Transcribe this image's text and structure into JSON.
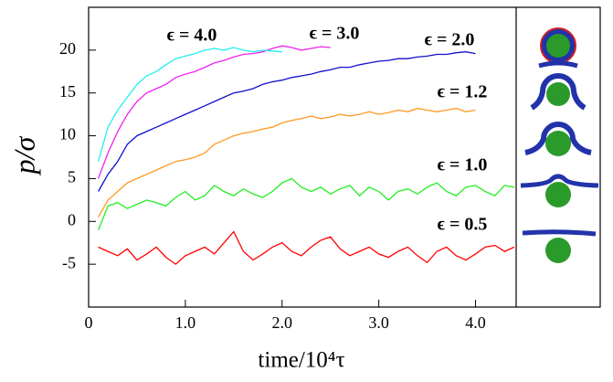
{
  "chart_data": {
    "type": "line",
    "x_label": "time/10⁴τ",
    "y_label": "p/σ",
    "xlim": [
      0,
      4.42
    ],
    "ylim": [
      -10,
      25
    ],
    "xticks": [
      0,
      {
        "value": 1,
        "label": "1.0"
      },
      {
        "value": 2,
        "label": "2.0"
      },
      {
        "value": 3,
        "label": "3.0"
      },
      {
        "value": 4,
        "label": "4.0"
      }
    ],
    "yticks": [
      -5,
      0,
      5,
      10,
      15,
      20
    ],
    "annotations": [
      "ϵ = 4.0",
      "ϵ = 3.0",
      "ϵ = 2.0",
      "ϵ = 1.2",
      "ϵ = 1.0",
      "ϵ = 0.5"
    ],
    "series": [
      {
        "color": "#ff0000",
        "x": [
          0.1,
          0.2,
          0.3,
          0.4,
          0.5,
          0.6,
          0.7,
          0.8,
          0.9,
          1.0,
          1.1,
          1.2,
          1.3,
          1.4,
          1.5,
          1.6,
          1.7,
          1.8,
          1.9,
          2.0,
          2.1,
          2.2,
          2.3,
          2.4,
          2.5,
          2.6,
          2.7,
          2.8,
          2.9,
          3.0,
          3.1,
          3.2,
          3.3,
          3.4,
          3.5,
          3.6,
          3.7,
          3.8,
          3.9,
          4.0,
          4.1,
          4.2,
          4.3,
          4.4
        ],
        "values": [
          -3,
          -3.5,
          -4,
          -3.2,
          -4.5,
          -3.8,
          -3,
          -4.2,
          -5,
          -4,
          -3.5,
          -3,
          -3.8,
          -2.5,
          -1.2,
          -3.5,
          -4.5,
          -3.8,
          -3,
          -2.5,
          -3.5,
          -4,
          -3,
          -2.2,
          -1.8,
          -3.2,
          -4,
          -3.5,
          -3,
          -3.8,
          -4.2,
          -3.5,
          -3,
          -4,
          -4.8,
          -3.5,
          -3,
          -4,
          -4.5,
          -3.8,
          -3,
          -2.8,
          -3.5,
          -3
        ]
      },
      {
        "color": "#22ee22",
        "x": [
          0.1,
          0.2,
          0.3,
          0.4,
          0.5,
          0.6,
          0.7,
          0.8,
          0.9,
          1.0,
          1.1,
          1.2,
          1.3,
          1.4,
          1.5,
          1.6,
          1.7,
          1.8,
          1.9,
          2.0,
          2.1,
          2.2,
          2.3,
          2.4,
          2.5,
          2.6,
          2.7,
          2.8,
          2.9,
          3.0,
          3.1,
          3.2,
          3.3,
          3.4,
          3.5,
          3.6,
          3.7,
          3.8,
          3.9,
          4.0,
          4.1,
          4.2,
          4.3,
          4.4
        ],
        "values": [
          -1,
          1.8,
          2.2,
          1.5,
          2,
          2.5,
          2.2,
          1.8,
          2.8,
          3.5,
          2.5,
          3,
          4.2,
          3.5,
          3,
          3.8,
          3.2,
          2.8,
          3.5,
          4.5,
          5,
          4,
          3.5,
          4,
          3.2,
          3.8,
          4.2,
          3,
          4,
          3.5,
          2.5,
          3.5,
          3.8,
          3.2,
          4,
          4.5,
          3.5,
          3,
          4,
          4.2,
          3.5,
          3,
          4.2,
          4
        ]
      },
      {
        "color": "#ff9922",
        "x": [
          0.1,
          0.2,
          0.3,
          0.4,
          0.5,
          0.6,
          0.7,
          0.8,
          0.9,
          1.0,
          1.1,
          1.2,
          1.3,
          1.4,
          1.5,
          1.6,
          1.7,
          1.8,
          1.9,
          2.0,
          2.1,
          2.2,
          2.3,
          2.4,
          2.5,
          2.6,
          2.7,
          2.8,
          2.9,
          3.0,
          3.1,
          3.2,
          3.3,
          3.4,
          3.5,
          3.6,
          3.7,
          3.8,
          3.9,
          4.0
        ],
        "values": [
          0.5,
          2.5,
          3.5,
          4.5,
          5,
          5.5,
          6,
          6.5,
          7,
          7.2,
          7.5,
          8,
          9,
          9.5,
          10,
          10.3,
          10.5,
          10.8,
          11,
          11.5,
          11.8,
          12,
          12.3,
          12,
          12.2,
          12.5,
          12.3,
          12.5,
          12.8,
          12.5,
          12.7,
          13,
          12.8,
          13.2,
          13,
          12.8,
          13,
          13.2,
          12.8,
          13
        ]
      },
      {
        "color": "#1010cc",
        "x": [
          0.1,
          0.2,
          0.3,
          0.4,
          0.5,
          0.6,
          0.7,
          0.8,
          0.9,
          1.0,
          1.1,
          1.2,
          1.3,
          1.4,
          1.5,
          1.6,
          1.7,
          1.8,
          1.9,
          2.0,
          2.1,
          2.2,
          2.3,
          2.4,
          2.5,
          2.6,
          2.7,
          2.8,
          2.9,
          3.0,
          3.1,
          3.2,
          3.3,
          3.4,
          3.5,
          3.6,
          3.7,
          3.8,
          3.9,
          4.0
        ],
        "values": [
          3.5,
          5.5,
          7,
          9,
          10,
          10.5,
          11,
          11.5,
          12,
          12.5,
          13,
          13.5,
          14,
          14.5,
          15,
          15.2,
          15.5,
          16,
          16.3,
          16.5,
          16.8,
          17,
          17.2,
          17.5,
          17.7,
          18,
          18,
          18.3,
          18.5,
          18.7,
          18.8,
          19,
          19,
          19.2,
          19.3,
          19.5,
          19.5,
          19.7,
          19.8,
          19.6
        ]
      },
      {
        "color": "#ee22ee",
        "x": [
          0.1,
          0.2,
          0.3,
          0.4,
          0.5,
          0.6,
          0.7,
          0.8,
          0.9,
          1.0,
          1.1,
          1.2,
          1.3,
          1.4,
          1.5,
          1.6,
          1.7,
          1.8,
          1.9,
          2.0,
          2.1,
          2.2,
          2.3,
          2.4,
          2.5
        ],
        "values": [
          5,
          8,
          10.5,
          12.5,
          14,
          15,
          15.5,
          16,
          16.8,
          17.2,
          17.5,
          18,
          18.5,
          18.8,
          19.2,
          19.5,
          19.6,
          19.8,
          20.2,
          20.5,
          20.3,
          20,
          20.2,
          20.4,
          20.3
        ]
      },
      {
        "color": "#22eeee",
        "x": [
          0.1,
          0.2,
          0.3,
          0.4,
          0.5,
          0.6,
          0.7,
          0.8,
          0.9,
          1.0,
          1.1,
          1.2,
          1.3,
          1.4,
          1.5,
          1.6,
          1.7,
          1.8,
          1.9,
          2.0
        ],
        "values": [
          7,
          11,
          13,
          14.5,
          16,
          17,
          17.5,
          18.3,
          19,
          19.3,
          19.6,
          20,
          20.2,
          20,
          20.3,
          20,
          19.8,
          20,
          19.9,
          19.8
        ]
      }
    ]
  }
}
